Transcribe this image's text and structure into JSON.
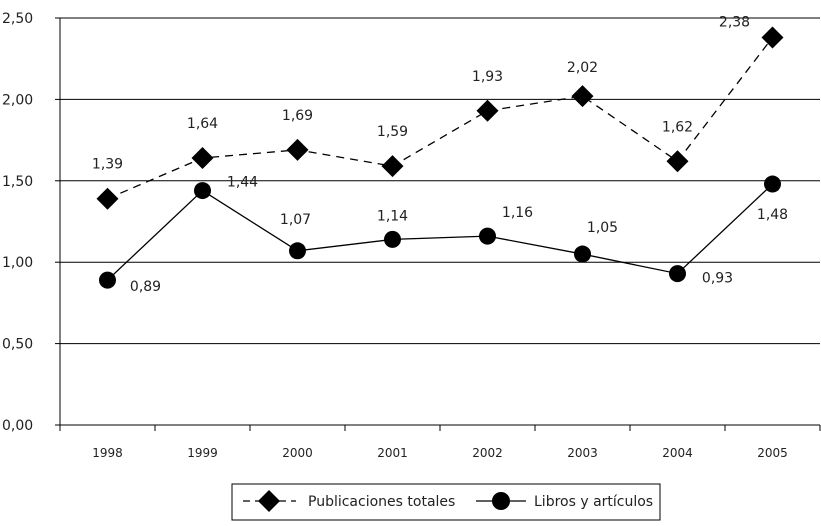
{
  "chart_data": {
    "type": "line",
    "categories": [
      "1998",
      "1999",
      "2000",
      "2001",
      "2002",
      "2003",
      "2004",
      "2005"
    ],
    "ylim": [
      0,
      2.5
    ],
    "yticks": [
      "0,00",
      "0,50",
      "1,00",
      "1,50",
      "2,00",
      "2,50"
    ],
    "grid": true,
    "legend_position": "bottom",
    "series": [
      {
        "name": "Publicaciones totales",
        "marker": "diamond",
        "line_style": "dashed",
        "color": "#000000",
        "values": [
          1.39,
          1.64,
          1.69,
          1.59,
          1.93,
          2.02,
          1.62,
          2.38
        ],
        "labels": [
          "1,39",
          "1,64",
          "1,69",
          "1,59",
          "1,93",
          "2,02",
          "1,62",
          "2,38"
        ]
      },
      {
        "name": "Libros y artículos",
        "marker": "circle",
        "line_style": "solid",
        "color": "#000000",
        "values": [
          0.89,
          1.44,
          1.07,
          1.14,
          1.16,
          1.05,
          0.93,
          1.48
        ],
        "labels": [
          "0,89",
          "1,44",
          "1,07",
          "1,14",
          "1,16",
          "1,05",
          "0,93",
          "1,48"
        ]
      }
    ]
  }
}
